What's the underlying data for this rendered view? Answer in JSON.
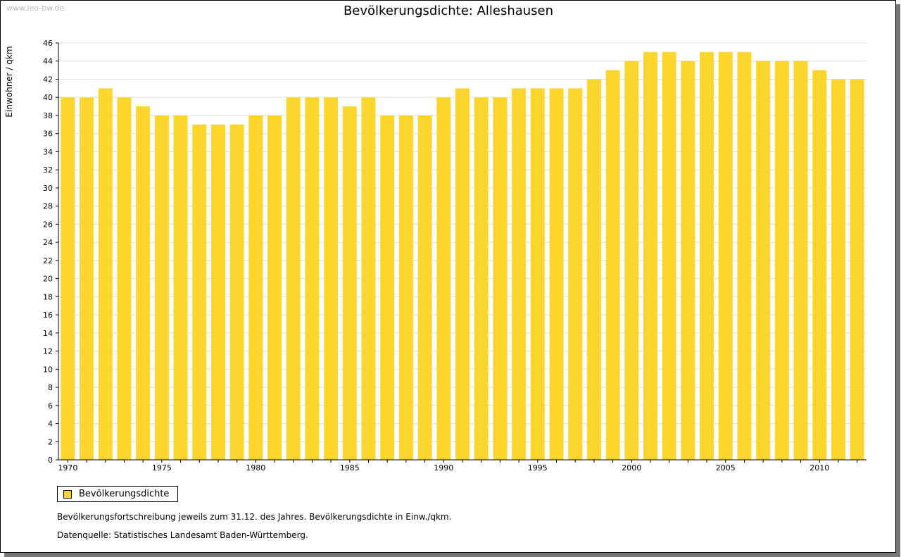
{
  "watermark": "www.leo-bw.de",
  "footnote": "Bevölkerungsfortschreibung jeweils zum 31.12. des Jahres. Bevölkerungsdichte in Einw./qkm.",
  "source": "Datenquelle: Statistisches Landesamt Baden-Württemberg.",
  "colors": {
    "bar": "#FCD62C",
    "grid": "#dddddd"
  },
  "chart_data": {
    "type": "bar",
    "title": "Bevölkerungsdichte: Alleshausen",
    "xlabel": "",
    "ylabel": "Einwohner / qkm",
    "ylim": [
      0,
      46
    ],
    "yticks": [
      0,
      2,
      4,
      6,
      8,
      10,
      12,
      14,
      16,
      18,
      20,
      22,
      24,
      26,
      28,
      30,
      32,
      34,
      36,
      38,
      40,
      42,
      44,
      46
    ],
    "xtick_labels": [
      "1970",
      "1975",
      "1980",
      "1985",
      "1990",
      "1995",
      "2000",
      "2005",
      "2010"
    ],
    "categories": [
      1970,
      1971,
      1972,
      1973,
      1974,
      1975,
      1976,
      1977,
      1978,
      1979,
      1980,
      1981,
      1982,
      1983,
      1984,
      1985,
      1986,
      1987,
      1988,
      1989,
      1990,
      1991,
      1992,
      1993,
      1994,
      1995,
      1996,
      1997,
      1998,
      1999,
      2000,
      2001,
      2002,
      2003,
      2004,
      2005,
      2006,
      2007,
      2008,
      2009,
      2010,
      2011,
      2012
    ],
    "series": [
      {
        "name": "Bevölkerungsdichte",
        "values": [
          40,
          40,
          41,
          40,
          39,
          38,
          38,
          37,
          37,
          37,
          38,
          38,
          40,
          40,
          40,
          39,
          40,
          38,
          38,
          38,
          40,
          41,
          40,
          40,
          41,
          41,
          41,
          41,
          42,
          43,
          44,
          45,
          45,
          44,
          45,
          45,
          45,
          44,
          44,
          44,
          43,
          42,
          42
        ]
      }
    ],
    "legend": "bottom-left",
    "grid": true
  }
}
